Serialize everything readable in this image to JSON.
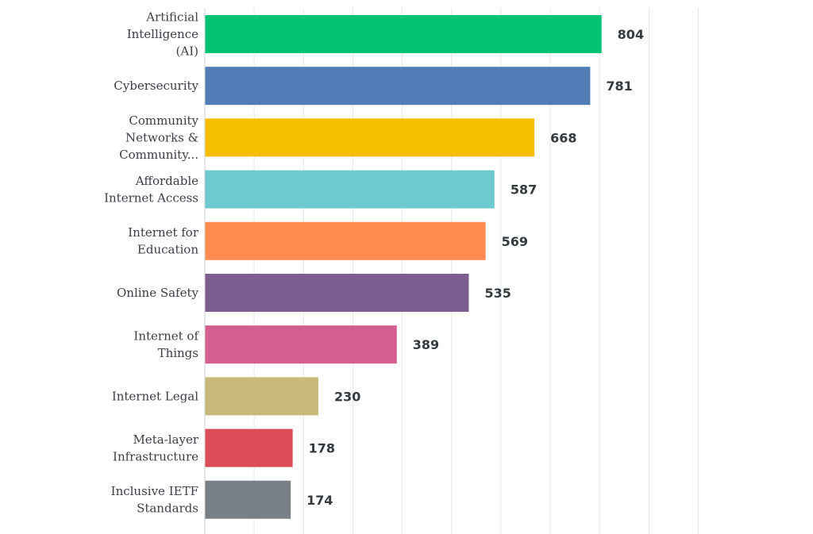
{
  "chart_data": {
    "type": "bar",
    "orientation": "horizontal",
    "title": "",
    "xlabel": "",
    "ylabel": "",
    "xlim": [
      0,
      1000
    ],
    "grid": true,
    "legend": "none",
    "categories": [
      [
        "Artificial",
        "Intelligence",
        "(AI)"
      ],
      [
        "Cybersecurity"
      ],
      [
        "Community",
        "Networks &",
        "Community..."
      ],
      [
        "Affordable",
        "Internet Access"
      ],
      [
        "Internet for",
        "Education"
      ],
      [
        "Online Safety"
      ],
      [
        "Internet of",
        "Things"
      ],
      [
        "Internet Legal"
      ],
      [
        "Meta-layer",
        "Infrastructure"
      ],
      [
        "Inclusive IETF",
        "Standards"
      ]
    ],
    "values": [
      804,
      781,
      668,
      587,
      569,
      535,
      389,
      230,
      178,
      174
    ],
    "colors": [
      "#05c172",
      "#507cb6",
      "#f6be00",
      "#6dcacf",
      "#ff8b4f",
      "#7d5e90",
      "#d45e8f",
      "#c8b97a",
      "#dc4d5a",
      "#787f86"
    ]
  }
}
